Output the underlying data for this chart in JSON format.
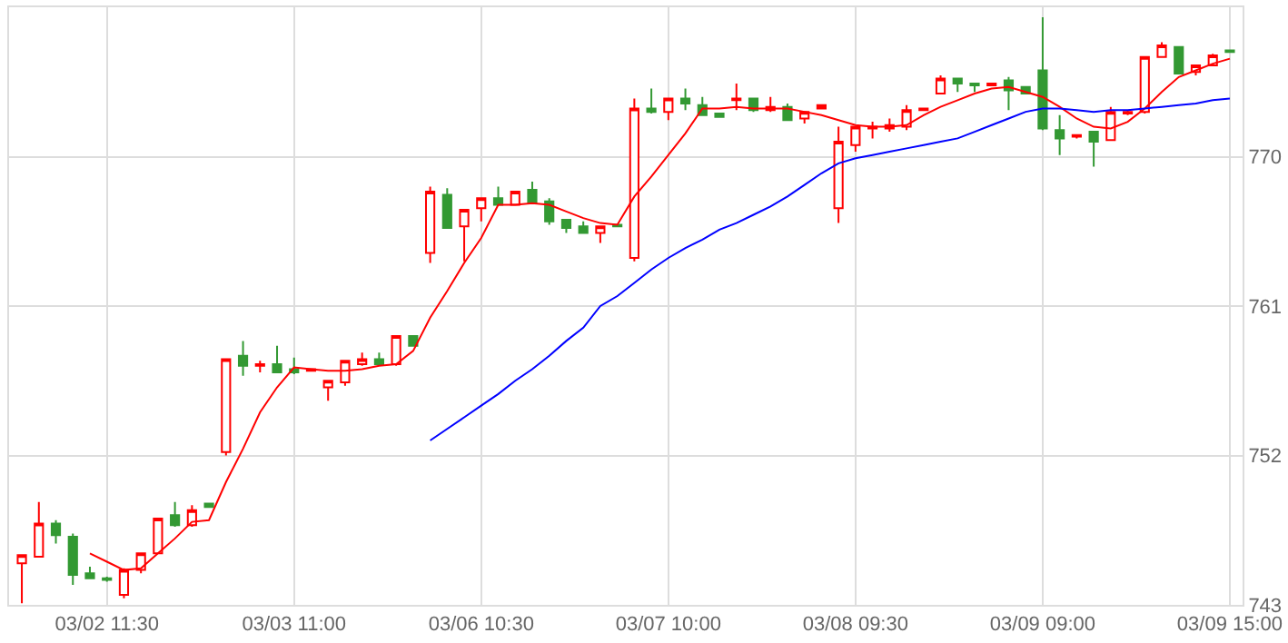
{
  "chart_data": {
    "type": "candlestick",
    "categories": [
      null,
      null,
      null,
      null,
      null,
      "03/02 11:30",
      null,
      null,
      null,
      null,
      null,
      null,
      null,
      null,
      null,
      null,
      "03/03 11:00",
      null,
      null,
      null,
      null,
      null,
      null,
      null,
      null,
      null,
      null,
      "03/06 10:30",
      null,
      null,
      null,
      null,
      null,
      null,
      null,
      null,
      null,
      null,
      "03/07 10:00",
      null,
      null,
      null,
      null,
      null,
      null,
      null,
      null,
      null,
      null,
      "03/08 09:30",
      null,
      null,
      null,
      null,
      null,
      null,
      null,
      null,
      null,
      null,
      "03/09 09:00",
      null,
      null,
      null,
      null,
      null,
      null,
      null,
      null,
      null,
      null,
      "03/09 15:00"
    ],
    "ohlc": [
      [
        745.5,
        746.0,
        743.1,
        746.0
      ],
      [
        745.9,
        749.2,
        745.9,
        747.9
      ],
      [
        747.9,
        748.1,
        746.7,
        747.2
      ],
      [
        747.1,
        747.3,
        744.2,
        744.8
      ],
      [
        744.9,
        745.3,
        744.6,
        744.6
      ],
      [
        744.6,
        744.7,
        744.4,
        744.5
      ],
      [
        743.6,
        745.2,
        743.4,
        745.1
      ],
      [
        745.1,
        746.1,
        744.9,
        746.1
      ],
      [
        746.1,
        748.2,
        746.1,
        748.2
      ],
      [
        748.4,
        749.2,
        747.7,
        747.8
      ],
      [
        747.8,
        749.0,
        747.7,
        748.7
      ],
      [
        749.1,
        749.1,
        748.9,
        748.9
      ],
      [
        752.2,
        757.8,
        752.0,
        757.8
      ],
      [
        758.0,
        758.9,
        756.8,
        757.4
      ],
      [
        757.4,
        757.7,
        757.0,
        757.5
      ],
      [
        757.5,
        758.6,
        757.0,
        757.0
      ],
      [
        757.2,
        757.9,
        756.9,
        757.0
      ],
      [
        757.1,
        757.2,
        757.1,
        757.2
      ],
      [
        756.1,
        756.5,
        755.3,
        756.5
      ],
      [
        756.4,
        757.7,
        756.2,
        757.7
      ],
      [
        757.5,
        758.2,
        757.4,
        757.8
      ],
      [
        757.8,
        758.2,
        757.4,
        757.5
      ],
      [
        757.5,
        759.2,
        757.4,
        759.2
      ],
      [
        759.2,
        759.2,
        758.6,
        758.6
      ],
      [
        764.2,
        768.2,
        763.6,
        767.9
      ],
      [
        767.7,
        768.1,
        765.7,
        765.7
      ],
      [
        765.8,
        766.8,
        763.7,
        766.8
      ],
      [
        766.9,
        767.5,
        766.1,
        767.5
      ],
      [
        767.5,
        768.2,
        767.1,
        767.1
      ],
      [
        767.1,
        767.9,
        767.1,
        767.9
      ],
      [
        768.0,
        768.5,
        767.2,
        767.2
      ],
      [
        767.3,
        767.5,
        765.9,
        766.1
      ],
      [
        766.2,
        766.2,
        765.4,
        765.7
      ],
      [
        765.8,
        766.1,
        765.4,
        765.4
      ],
      [
        765.4,
        765.8,
        764.8,
        765.8
      ],
      [
        765.9,
        765.9,
        765.8,
        765.8
      ],
      [
        763.9,
        773.5,
        763.7,
        772.9
      ],
      [
        772.9,
        774.1,
        772.6,
        772.7
      ],
      [
        772.7,
        773.5,
        772.2,
        773.5
      ],
      [
        773.5,
        774.1,
        772.8,
        773.2
      ],
      [
        773.1,
        773.6,
        772.5,
        772.5
      ],
      [
        772.6,
        772.6,
        772.4,
        772.4
      ],
      [
        773.4,
        774.4,
        772.8,
        773.5
      ],
      [
        773.5,
        773.5,
        772.7,
        772.8
      ],
      [
        772.8,
        773.6,
        772.7,
        773.0
      ],
      [
        773.0,
        773.2,
        772.2,
        772.2
      ],
      [
        772.3,
        772.7,
        772.0,
        772.7
      ],
      [
        772.9,
        773.1,
        772.9,
        773.1
      ],
      [
        766.9,
        771.8,
        766.0,
        770.9
      ],
      [
        770.7,
        771.8,
        770.3,
        771.8
      ],
      [
        771.7,
        772.1,
        771.1,
        771.8
      ],
      [
        771.7,
        772.3,
        771.5,
        771.9
      ],
      [
        771.8,
        773.1,
        771.6,
        772.8
      ],
      [
        772.8,
        772.9,
        772.8,
        772.9
      ],
      [
        773.8,
        774.9,
        773.8,
        774.7
      ],
      [
        774.7,
        774.7,
        773.9,
        774.4
      ],
      [
        774.4,
        774.4,
        773.9,
        774.3
      ],
      [
        774.3,
        774.4,
        774.3,
        774.4
      ],
      [
        774.6,
        774.8,
        772.8,
        774.0
      ],
      [
        774.2,
        774.2,
        773.8,
        773.8
      ],
      [
        775.2,
        778.4,
        771.6,
        771.7
      ],
      [
        771.6,
        772.5,
        770.1,
        771.1
      ],
      [
        771.2,
        771.3,
        771.1,
        771.3
      ],
      [
        771.5,
        771.5,
        769.4,
        770.9
      ],
      [
        771.0,
        773.0,
        771.0,
        772.7
      ],
      [
        772.6,
        772.8,
        772.5,
        772.7
      ],
      [
        772.7,
        776.0,
        772.6,
        776.0
      ],
      [
        776.0,
        776.9,
        776.0,
        776.7
      ],
      [
        776.6,
        776.6,
        775.0,
        775.0
      ],
      [
        775.1,
        775.5,
        774.9,
        775.5
      ],
      [
        775.5,
        776.2,
        775.5,
        776.1
      ],
      [
        776.4,
        776.4,
        776.3,
        776.3
      ]
    ],
    "colors": [
      "#ff0000",
      "#ff0000",
      "#339933",
      "#339933",
      "#339933",
      "#339933",
      "#ff0000",
      "#ff0000",
      "#ff0000",
      "#339933",
      "#ff0000",
      "#339933",
      "#ff0000",
      "#339933",
      "#ff0000",
      "#339933",
      "#339933",
      "#ff0000",
      "#ff0000",
      "#ff0000",
      "#ff0000",
      "#339933",
      "#ff0000",
      "#339933",
      "#ff0000",
      "#339933",
      "#ff0000",
      "#ff0000",
      "#339933",
      "#ff0000",
      "#339933",
      "#339933",
      "#339933",
      "#339933",
      "#ff0000",
      "#339933",
      "#ff0000",
      "#339933",
      "#ff0000",
      "#339933",
      "#339933",
      "#339933",
      "#ff0000",
      "#339933",
      "#ff0000",
      "#339933",
      "#ff0000",
      "#ff0000",
      "#ff0000",
      "#ff0000",
      "#ff0000",
      "#ff0000",
      "#ff0000",
      "#ff0000",
      "#ff0000",
      "#339933",
      "#339933",
      "#ff0000",
      "#339933",
      "#339933",
      "#339933",
      "#339933",
      "#ff0000",
      "#339933",
      "#ff0000",
      "#ff0000",
      "#ff0000",
      "#ff0000",
      "#339933",
      "#ff0000",
      "#ff0000",
      "#339933"
    ],
    "series": [
      {
        "type": "line",
        "color": "#ff0000",
        "values": [
          null,
          null,
          null,
          null,
          746.1,
          745.6,
          745.1,
          745.2,
          746.1,
          747.0,
          748.0,
          748.1,
          750.4,
          752.4,
          754.6,
          756.1,
          757.3,
          757.2,
          757.1,
          757.1,
          757.2,
          757.4,
          757.5,
          758.3,
          760.3,
          761.9,
          763.6,
          765.1,
          767.1,
          767.1,
          767.2,
          767.1,
          766.7,
          766.3,
          766.0,
          765.9,
          767.6,
          768.8,
          770.1,
          771.4,
          772.9,
          772.9,
          773.0,
          772.9,
          772.9,
          772.9,
          772.7,
          772.5,
          772.2,
          771.9,
          771.8,
          771.8,
          771.9,
          772.5,
          773.0,
          773.4,
          773.8,
          774.1,
          774.2,
          773.9,
          773.6,
          773.0,
          772.3,
          771.8,
          771.7,
          772.1,
          772.9,
          773.9,
          774.8,
          775.2,
          775.6,
          775.9
        ]
      },
      {
        "type": "line",
        "color": "#0000ff",
        "values": [
          null,
          null,
          null,
          null,
          null,
          null,
          null,
          null,
          null,
          null,
          null,
          null,
          null,
          null,
          null,
          null,
          null,
          null,
          null,
          null,
          null,
          null,
          null,
          null,
          752.9,
          753.6,
          754.3,
          755.0,
          755.7,
          756.5,
          757.2,
          758.0,
          758.9,
          759.7,
          761.0,
          761.6,
          762.4,
          763.2,
          763.9,
          764.5,
          765.0,
          765.6,
          766.0,
          766.5,
          767.0,
          767.6,
          768.3,
          769.0,
          769.6,
          769.9,
          770.1,
          770.3,
          770.5,
          770.7,
          770.9,
          771.1,
          771.5,
          771.9,
          772.3,
          772.7,
          772.9,
          772.9,
          772.8,
          772.7,
          772.8,
          772.8,
          772.9,
          773.0,
          773.1,
          773.2,
          773.4,
          773.5
        ]
      }
    ],
    "ylim": [
      743,
      779
    ],
    "yticks": [
      743,
      752,
      761,
      770
    ],
    "grid": true,
    "marker": "none",
    "line_style": "solid"
  }
}
